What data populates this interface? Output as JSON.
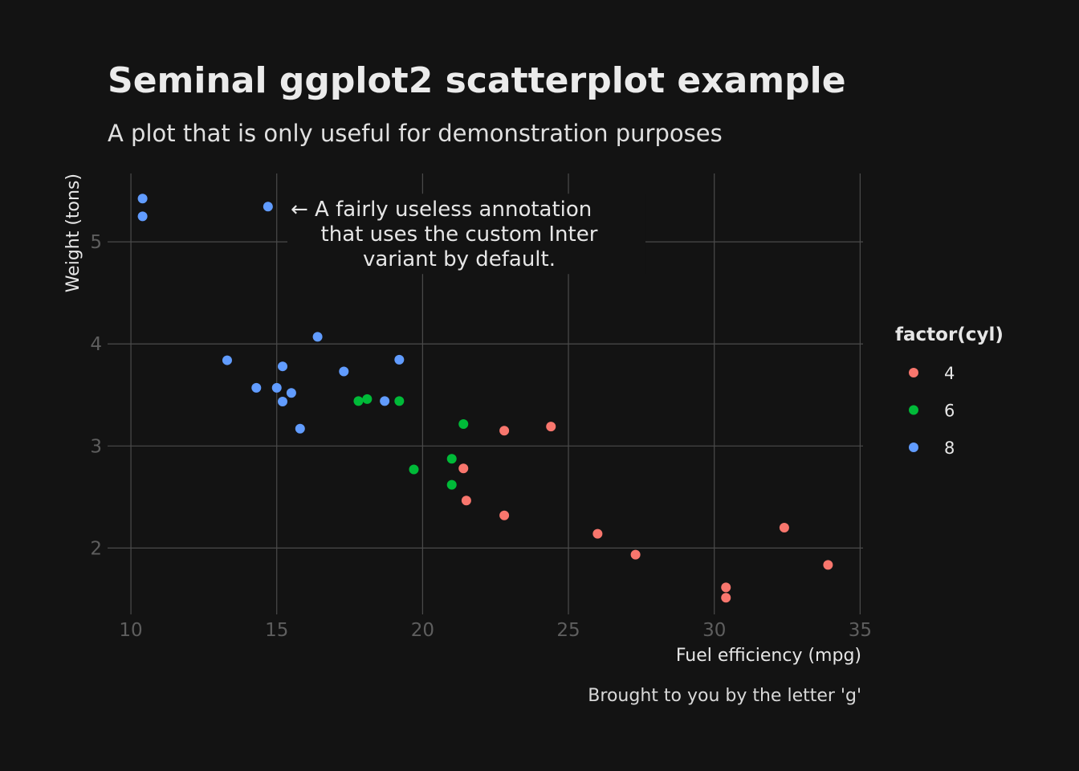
{
  "chart_data": {
    "type": "scatter",
    "title": "Seminal ggplot2 scatterplot example",
    "subtitle": "A plot that is only useful for demonstration purposes",
    "xlabel": "Fuel efficiency (mpg)",
    "ylabel": "Weight (tons)",
    "caption": "Brought to you by the letter 'g'",
    "xlim": [
      9.2,
      35.1
    ],
    "ylim": [
      1.35,
      5.67
    ],
    "xticks": [
      "10",
      "15",
      "20",
      "25",
      "30",
      "35"
    ],
    "yticks": [
      "2",
      "3",
      "4",
      "5"
    ],
    "grid": true,
    "legend": {
      "title": "factor(cyl)",
      "position": "right",
      "entries": [
        "4",
        "6",
        "8"
      ]
    },
    "annotation": {
      "lines": [
        "← A fairly useless annotation",
        "that uses the custom Inter",
        "variant by default."
      ],
      "x": 15.2,
      "y": 5.33
    },
    "series": [
      {
        "name": "4",
        "color": "#F8766D",
        "points": [
          [
            22.8,
            2.32
          ],
          [
            24.4,
            3.19
          ],
          [
            22.8,
            3.15
          ],
          [
            32.4,
            2.2
          ],
          [
            30.4,
            1.615
          ],
          [
            33.9,
            1.835
          ],
          [
            21.5,
            2.465
          ],
          [
            27.3,
            1.935
          ],
          [
            26.0,
            2.14
          ],
          [
            30.4,
            1.513
          ],
          [
            21.4,
            2.78
          ]
        ]
      },
      {
        "name": "6",
        "color": "#00BA38",
        "points": [
          [
            21.0,
            2.62
          ],
          [
            21.0,
            2.875
          ],
          [
            21.4,
            3.215
          ],
          [
            18.1,
            3.46
          ],
          [
            19.2,
            3.44
          ],
          [
            17.8,
            3.44
          ],
          [
            19.7,
            2.77
          ]
        ]
      },
      {
        "name": "8",
        "color": "#619CFF",
        "points": [
          [
            18.7,
            3.44
          ],
          [
            14.3,
            3.57
          ],
          [
            16.4,
            4.07
          ],
          [
            17.3,
            3.73
          ],
          [
            15.2,
            3.78
          ],
          [
            10.4,
            5.25
          ],
          [
            10.4,
            5.424
          ],
          [
            14.7,
            5.345
          ],
          [
            15.5,
            3.52
          ],
          [
            15.2,
            3.435
          ],
          [
            13.3,
            3.84
          ],
          [
            19.2,
            3.845
          ],
          [
            15.8,
            3.17
          ],
          [
            15.0,
            3.57
          ]
        ]
      }
    ]
  }
}
